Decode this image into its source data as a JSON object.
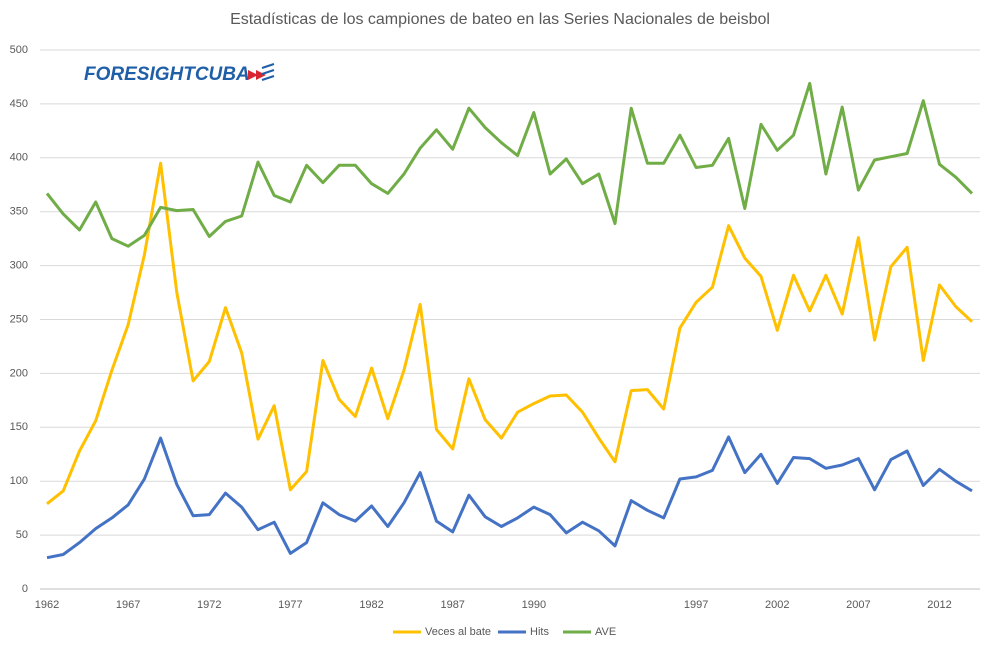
{
  "logo": "FORESIGHTCUBA",
  "chart_data": {
    "type": "line",
    "title": "Estadísticas de los campiones de bateo en las Series Nacionales de beisbol",
    "categories": [
      "1962",
      null,
      null,
      null,
      null,
      "1967",
      null,
      null,
      null,
      null,
      "1972",
      null,
      null,
      null,
      null,
      "1977",
      null,
      null,
      null,
      null,
      "1982",
      null,
      null,
      null,
      null,
      "1987",
      null,
      null,
      null,
      null,
      "1990",
      null,
      null,
      null,
      null,
      null,
      null,
      null,
      null,
      null,
      "1997",
      null,
      null,
      null,
      null,
      "2002",
      null,
      null,
      null,
      null,
      "2007",
      null,
      null,
      null,
      null,
      "2012",
      null,
      null
    ],
    "series": [
      {
        "name": "Veces al bate",
        "color": "#ffc000",
        "values": [
          79,
          91,
          128,
          156,
          203,
          245,
          310,
          395,
          275,
          193,
          211,
          261,
          219,
          139,
          170,
          92,
          109,
          212,
          176,
          160,
          205,
          158,
          203,
          264,
          148,
          130,
          195,
          157,
          140,
          164,
          172,
          179,
          180,
          164,
          140,
          118,
          184,
          185,
          167,
          242,
          266,
          280,
          337,
          307,
          290,
          240,
          291,
          258,
          291,
          255,
          326,
          231,
          299,
          317,
          212,
          282,
          262,
          248
        ]
      },
      {
        "name": "Hits",
        "color": "#4472c4",
        "values": [
          29,
          32,
          43,
          56,
          66,
          78,
          102,
          140,
          97,
          68,
          69,
          89,
          76,
          55,
          62,
          33,
          43,
          80,
          69,
          63,
          77,
          58,
          80,
          108,
          63,
          53,
          87,
          67,
          58,
          66,
          76,
          69,
          52,
          62,
          54,
          40,
          82,
          73,
          66,
          102,
          104,
          110,
          141,
          108,
          125,
          98,
          122,
          121,
          112,
          115,
          121,
          92,
          120,
          128,
          96,
          111,
          100,
          91
        ]
      },
      {
        "name": "AVE",
        "color": "#70ad47",
        "values": [
          367,
          348,
          333,
          359,
          325,
          318,
          328,
          354,
          351,
          352,
          327,
          341,
          346,
          396,
          365,
          359,
          393,
          377,
          393,
          393,
          376,
          367,
          385,
          409,
          426,
          408,
          446,
          428,
          414,
          402,
          442,
          385,
          399,
          376,
          385,
          339,
          446,
          395,
          395,
          421,
          391,
          393,
          418,
          353,
          431,
          407,
          421,
          469,
          385,
          447,
          370,
          398,
          401,
          404,
          453,
          394,
          382,
          367
        ]
      }
    ],
    "ylim": [
      0,
      500
    ],
    "yticks": [
      0,
      50,
      100,
      150,
      200,
      250,
      300,
      350,
      400,
      450,
      500
    ],
    "grid": true,
    "legend": "bottom"
  }
}
